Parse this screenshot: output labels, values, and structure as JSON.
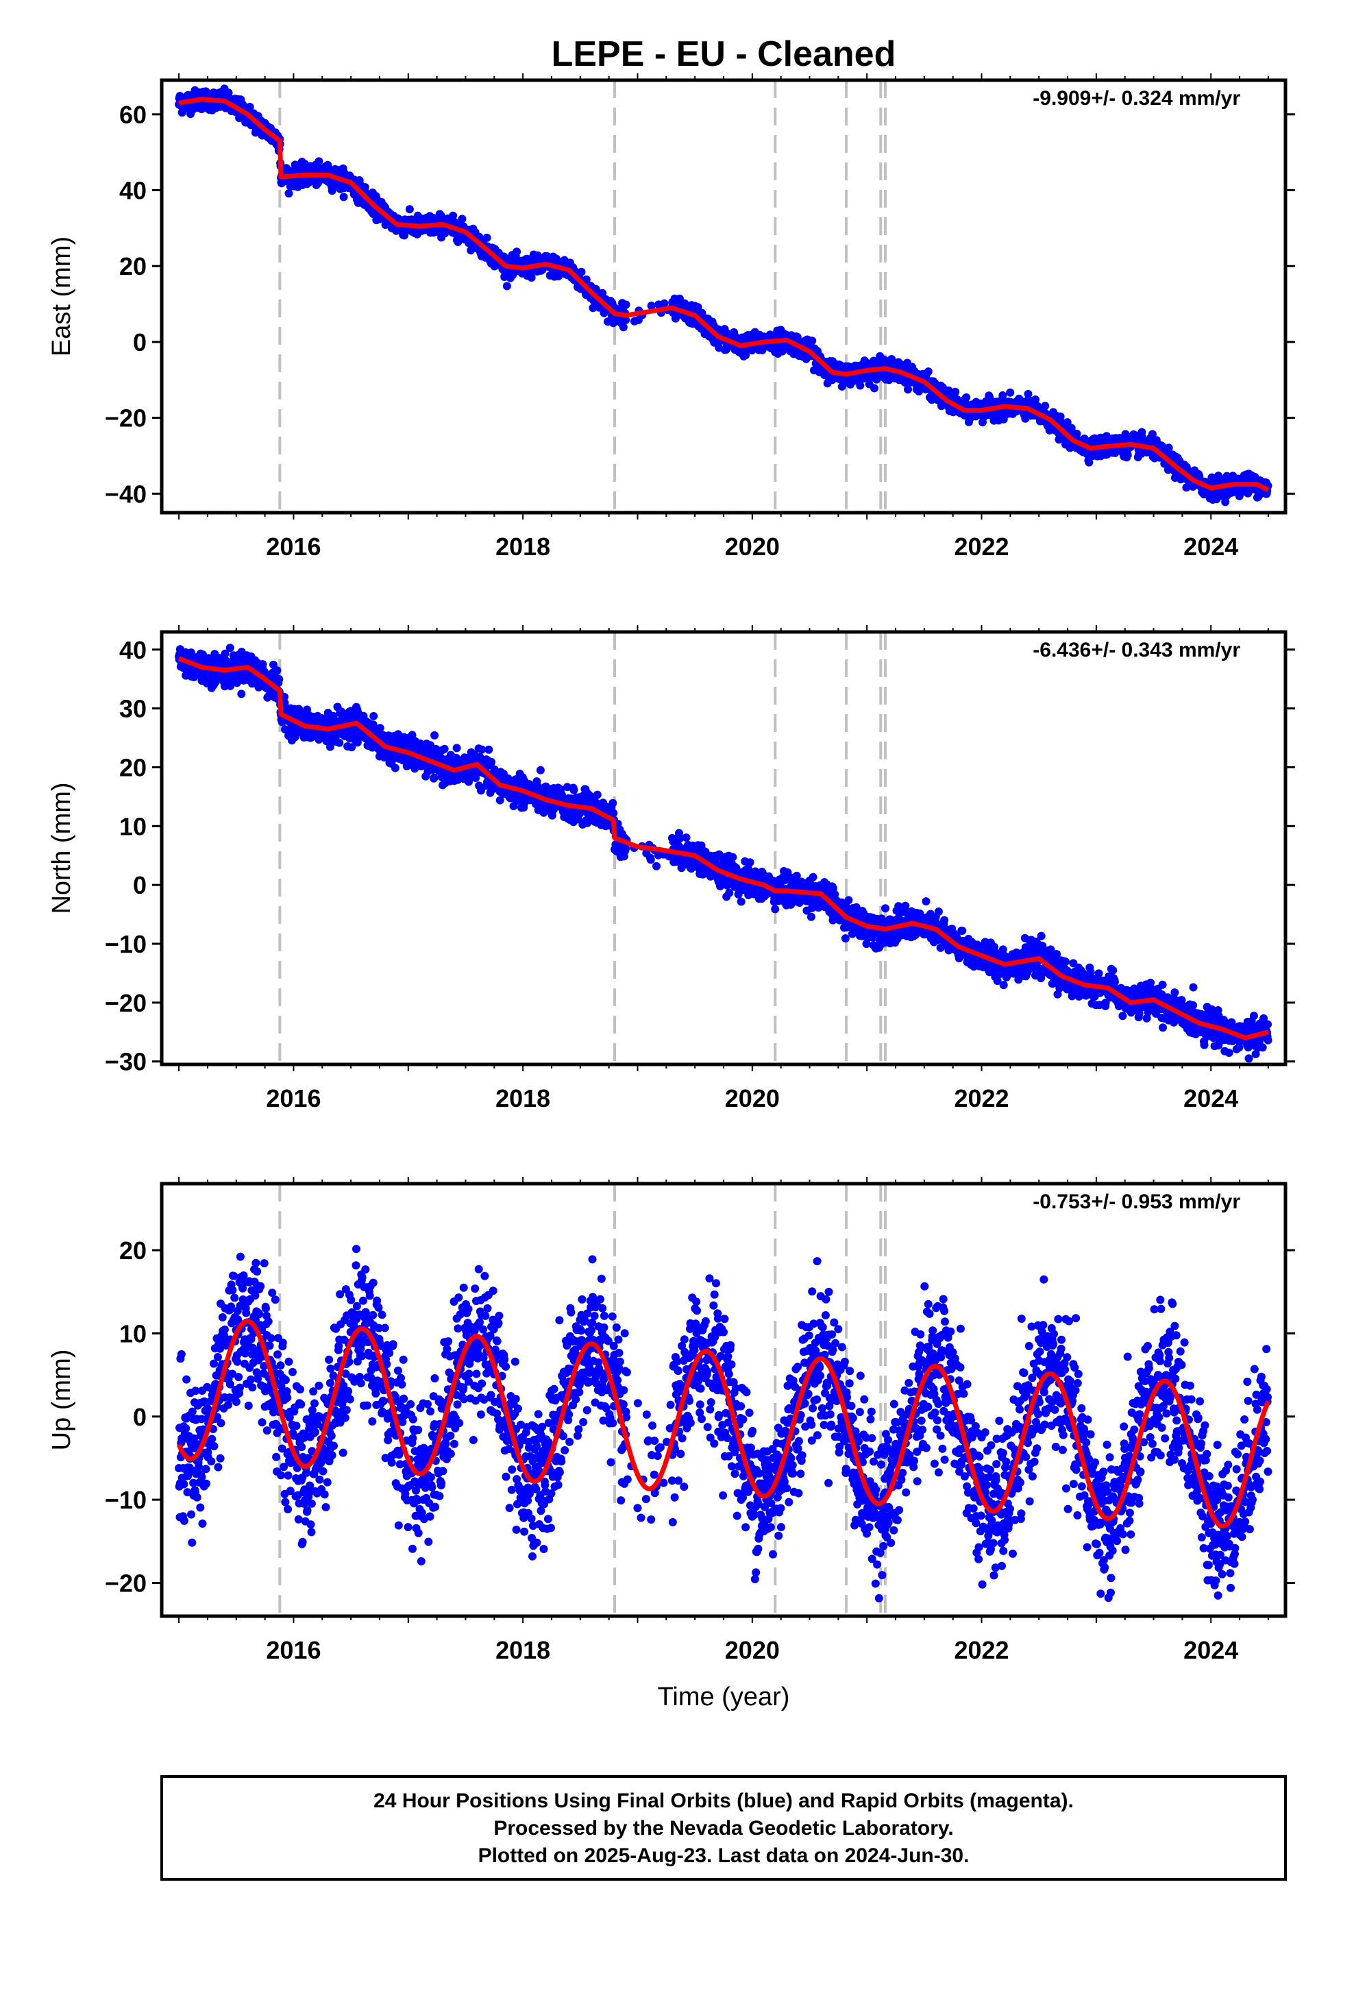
{
  "title": "LEPE  - EU - Cleaned",
  "footer": {
    "lines": [
      "24 Hour Positions Using Final Orbits (blue) and Rapid Orbits (magenta).",
      "Processed by the Nevada Geodetic Laboratory.",
      "Plotted on 2025-Aug-23. Last data on 2024-Jun-30."
    ]
  },
  "colors": {
    "points": "#0000ff",
    "model": "#ff0000",
    "steps": "#c0c0c0",
    "frame": "#000000"
  },
  "chart_data": [
    {
      "type": "scatter",
      "component": "east",
      "ylabel": "East (mm)",
      "xlabel": "",
      "xlim": [
        2014.85,
        2024.65
      ],
      "ylim": [
        -45,
        69
      ],
      "yticks": [
        -40,
        -20,
        0,
        20,
        40,
        60
      ],
      "xticks": [
        2016,
        2018,
        2020,
        2022,
        2024
      ],
      "rate_label": "-9.909+/- 0.324 mm/yr",
      "grid": false,
      "equipment_steps": [
        2015.88,
        2018.8,
        2020.2,
        2020.82,
        2021.12,
        2021.16
      ],
      "model_curve": {
        "x": [
          2015.0,
          2015.2,
          2015.4,
          2015.6,
          2015.75,
          2015.88,
          2015.89,
          2016.1,
          2016.3,
          2016.5,
          2016.7,
          2016.9,
          2017.1,
          2017.3,
          2017.5,
          2017.7,
          2017.85,
          2018.0,
          2018.2,
          2018.4,
          2018.6,
          2018.8,
          2018.9,
          2019.1,
          2019.3,
          2019.5,
          2019.7,
          2019.9,
          2020.1,
          2020.3,
          2020.5,
          2020.7,
          2020.82,
          2021.0,
          2021.16,
          2021.3,
          2021.5,
          2021.7,
          2021.85,
          2022.0,
          2022.2,
          2022.4,
          2022.6,
          2022.8,
          2022.95,
          2023.1,
          2023.3,
          2023.5,
          2023.7,
          2023.85,
          2024.0,
          2024.2,
          2024.4,
          2024.5
        ],
        "y": [
          63,
          64,
          63.5,
          60,
          56,
          53,
          43.5,
          44,
          44,
          42,
          36,
          31,
          30.5,
          31,
          29,
          24,
          20,
          19.5,
          20.5,
          19,
          13,
          7.5,
          7,
          8,
          9,
          7,
          1.5,
          -1,
          0,
          0.5,
          -2.5,
          -8,
          -8.5,
          -7.5,
          -7,
          -8,
          -10.5,
          -15.5,
          -18,
          -18,
          -17,
          -17.5,
          -20.5,
          -26,
          -28,
          -27.5,
          -27,
          -28,
          -33,
          -36.5,
          -38.5,
          -37.5,
          -37.5,
          -39
        ]
      }
    },
    {
      "type": "scatter",
      "component": "north",
      "ylabel": "North (mm)",
      "xlabel": "",
      "xlim": [
        2014.85,
        2024.65
      ],
      "ylim": [
        -30.5,
        43
      ],
      "yticks": [
        -30,
        -20,
        -10,
        0,
        10,
        20,
        30,
        40
      ],
      "xticks": [
        2016,
        2018,
        2020,
        2022,
        2024
      ],
      "rate_label": "-6.436+/- 0.343 mm/yr",
      "grid": false,
      "equipment_steps": [
        2015.88,
        2018.8,
        2020.2,
        2020.82,
        2021.12,
        2021.16
      ],
      "model_curve": {
        "x": [
          2015.0,
          2015.2,
          2015.4,
          2015.6,
          2015.75,
          2015.88,
          2015.89,
          2016.1,
          2016.3,
          2016.55,
          2016.8,
          2017.0,
          2017.2,
          2017.4,
          2017.6,
          2017.8,
          2018.0,
          2018.2,
          2018.4,
          2018.6,
          2018.79,
          2018.8,
          2019.0,
          2019.2,
          2019.5,
          2019.7,
          2019.9,
          2020.1,
          2020.2,
          2020.3,
          2020.6,
          2020.82,
          2021.0,
          2021.16,
          2021.4,
          2021.6,
          2021.8,
          2022.0,
          2022.2,
          2022.5,
          2022.7,
          2022.9,
          2023.1,
          2023.3,
          2023.5,
          2023.7,
          2023.9,
          2024.1,
          2024.3,
          2024.5
        ],
        "y": [
          38.5,
          37,
          36.5,
          37,
          35,
          33,
          29,
          27,
          26.5,
          27.5,
          23.5,
          22.5,
          21,
          19.5,
          20.5,
          17,
          16,
          14.5,
          13.5,
          13,
          11,
          8,
          6.5,
          6,
          5,
          2.5,
          1,
          0,
          -1,
          -1,
          -1.5,
          -5.5,
          -7,
          -7.5,
          -6.5,
          -7.5,
          -10.5,
          -12,
          -13.5,
          -12.5,
          -15.5,
          -17,
          -17.5,
          -20,
          -19.5,
          -21.5,
          -23.5,
          -24.5,
          -26,
          -25
        ]
      }
    },
    {
      "type": "scatter",
      "component": "up",
      "ylabel": "Up (mm)",
      "xlabel": "Time (year)",
      "xlim": [
        2014.85,
        2024.65
      ],
      "ylim": [
        -24,
        28
      ],
      "yticks": [
        -20,
        -10,
        0,
        10,
        20
      ],
      "xticks": [
        2016,
        2018,
        2020,
        2022,
        2024
      ],
      "rate_label": "-0.753+/- 0.953 mm/yr",
      "grid": false,
      "equipment_steps": [
        2015.88,
        2018.8,
        2020.2,
        2020.82,
        2021.12,
        2021.16
      ],
      "model_curve": {
        "amplitude_mm": 8.5,
        "phase_peak_fraction_of_year": 0.6,
        "offset_mm": 4.7,
        "rate_mm_per_yr": -0.753,
        "x_start": 2015.0,
        "x_end": 2024.5
      }
    }
  ]
}
